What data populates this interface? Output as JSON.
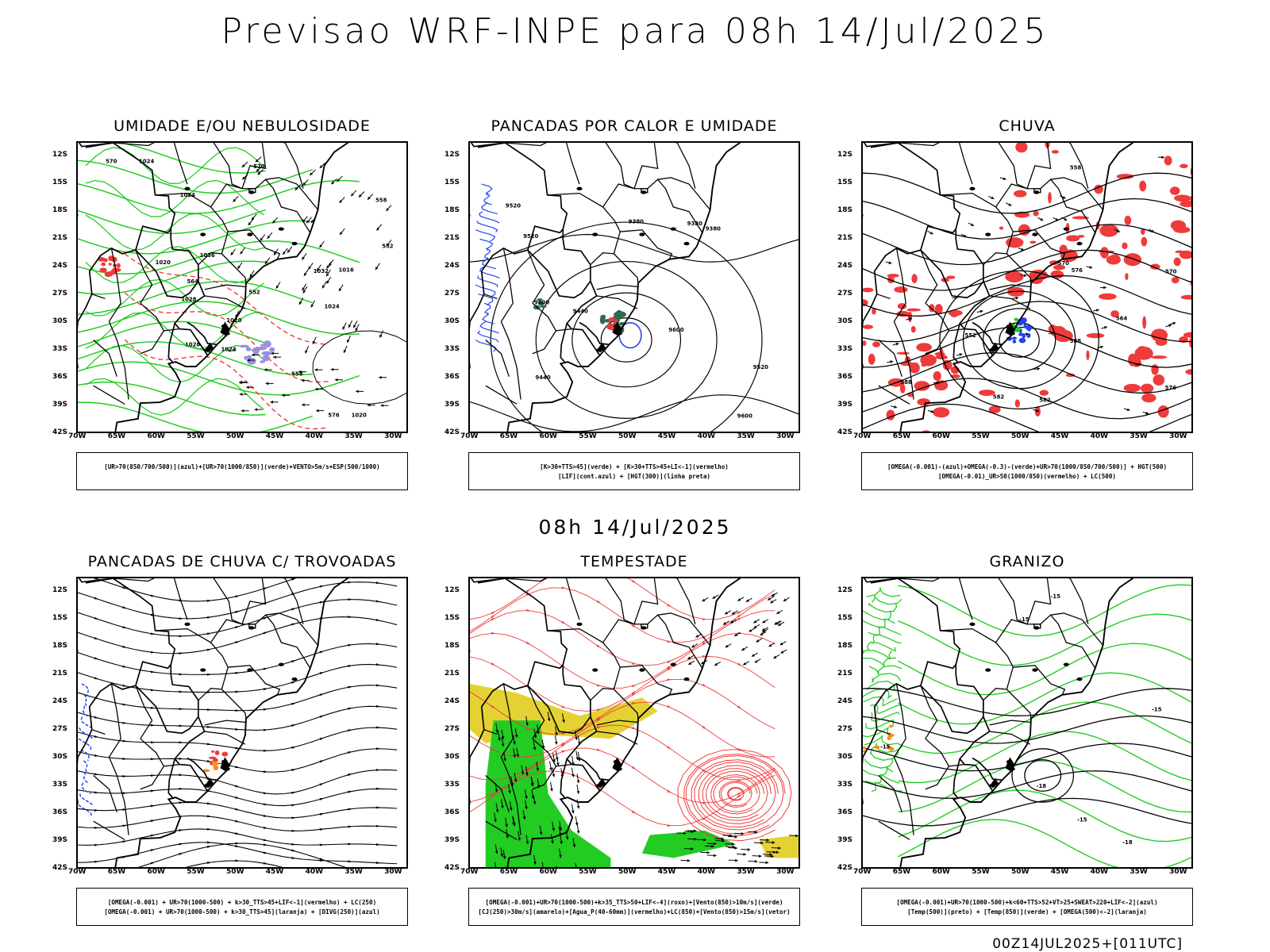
{
  "header": {
    "title": "Previsao WRF-INPE  para 08h 14/Jul/2025",
    "mid_title": "08h 14/Jul/2025",
    "footer": "00Z14JUL2025+[011UTC]"
  },
  "axes": {
    "lat_labels": [
      "12S",
      "15S",
      "18S",
      "21S",
      "24S",
      "27S",
      "30S",
      "33S",
      "36S",
      "39S",
      "42S"
    ],
    "lon_labels": [
      "70W",
      "65W",
      "60W",
      "55W",
      "50W",
      "45W",
      "40W",
      "35W",
      "30W"
    ]
  },
  "colors": {
    "green": "#22cc22",
    "red": "#ee3b3b",
    "blue": "#2244ee",
    "yellow": "#e4d234",
    "orange": "#ff8c1a",
    "purple": "#9a90e0",
    "darkgreen": "#2f6b50",
    "black": "#000000"
  },
  "panels": [
    {
      "id": "umidade",
      "title": "UMIDADE E/OU NEBULOSIDADE",
      "legend": [
        "[UR>70(850/700/500)](azul)+[UR>70(1000/850)](verde)+VENTO>5m/s+ESP(500/1000)"
      ],
      "contour_labels": [
        "1020",
        "1020",
        "1024",
        "1024",
        "1020",
        "1024",
        "1024",
        "1028",
        "1028",
        "1032",
        "1016",
        "570",
        "570",
        "576",
        "564",
        "558",
        "552",
        "552",
        "558",
        "1036"
      ]
    },
    {
      "id": "pancadas-calor",
      "title": "PANCADAS POR CALOR E UMIDADE",
      "legend": [
        "[K>30+TTS>45](verde) + [K>30+TTS>45+LI<-1](vermelho)",
        "[LIF](cont.azul) + [HGT(300)](linha preta)"
      ],
      "contour_labels": [
        "9600",
        "9600",
        "9600",
        "9520",
        "9520",
        "9520",
        "9440",
        "9440",
        "9380",
        "9380",
        "9380"
      ]
    },
    {
      "id": "chuva",
      "title": "CHUVA",
      "legend": [
        "[OMEGA(-0.001)-(azul)+OMEGA(-0.3)-(verde)+UR>70(1000/850/700/500)] + HGT(500)",
        "[OMEGA(-0.01)_UR>50(1000/850)(vermelho) + LC(500)"
      ],
      "contour_labels": [
        "588",
        "588",
        "582",
        "576",
        "570",
        "564",
        "558",
        "552",
        "570",
        "576",
        "582"
      ]
    },
    {
      "id": "trovoadas",
      "title": "PANCADAS DE CHUVA C/ TROVOADAS",
      "legend": [
        "[OMEGA(-0.001) + UR>70(1000-500) + k>30_TTS>45+LIF<-1](vermelho) + LC(250)",
        "[OMEGA(-0.001) + UR>70(1000-500) + k>30_TTS>45](laranja) + [DIVG(250)](azul)"
      ],
      "contour_labels": []
    },
    {
      "id": "tempestade",
      "title": "TEMPESTADE",
      "legend": [
        "[OMEGA(-0.001)+UR>70(1000-500)+k>35_TTS>50+LIF<-4](roxo)+[Vento(850)>10m/s](verde)",
        "[CJ(250)>30m/s](amarelo)+[Agua_P(40-60mm)](vermelho)+LC(850)+[Vento(850)>15m/s](vetor)"
      ],
      "contour_labels": []
    },
    {
      "id": "granizo",
      "title": "GRANIZO",
      "legend": [
        "[OMEGA(-0.001)+UR>70(1000-500)+k<60+TTS>52+VT>25+SWEAT>220+LIF<-2](azul)",
        "[Temp(500)](preto) + [Temp(850)](verde) + [OMEGA(500)<-2](laranja)"
      ],
      "contour_labels": [
        "-15",
        "-18",
        "-18",
        "-15",
        "-15",
        "-15",
        "-15"
      ]
    }
  ]
}
